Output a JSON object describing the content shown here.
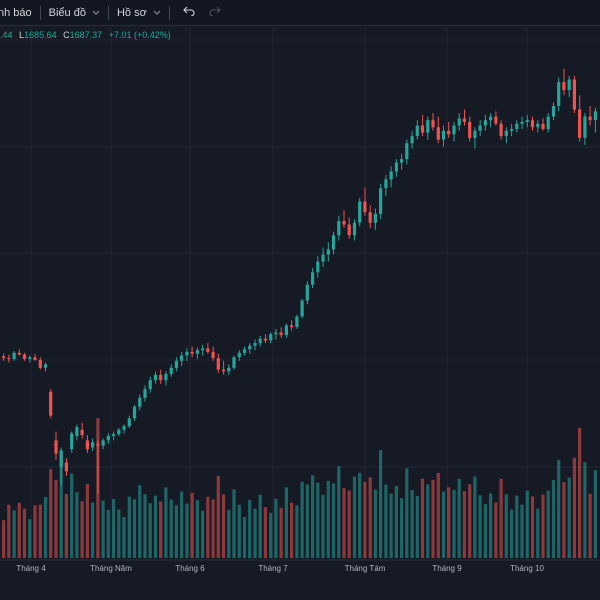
{
  "toolbar": {
    "alerts_label": "nh báo",
    "chart_label": "Biểu đồ",
    "profile_label": "Hồ sơ",
    "undo_icon": "undo-icon",
    "redo_icon": "redo-icon"
  },
  "legend": {
    "open_value": ".44",
    "low_key": "L",
    "low_value": "1685.64",
    "close_key": "C",
    "close_value": "1687.37",
    "change": "+7.01 (+0.42%)"
  },
  "colors": {
    "up": "#26a69a",
    "down": "#ef5350",
    "background": "#161a25",
    "grid": "#222632"
  },
  "chart_data": {
    "type": "candlestick",
    "x_tick_labels": [
      "Tháng 4",
      "Tháng Năm",
      "Tháng 6",
      "Tháng 7",
      "Tháng Tám",
      "Tháng 9",
      "Tháng 10"
    ],
    "price_range": [
      1260,
      1780
    ],
    "candles": [
      [
        1445,
        1448,
        1440,
        1443
      ],
      [
        1443,
        1447,
        1438,
        1442
      ],
      [
        1442,
        1451,
        1440,
        1449
      ],
      [
        1449,
        1453,
        1446,
        1447
      ],
      [
        1447,
        1449,
        1440,
        1442
      ],
      [
        1442,
        1446,
        1438,
        1444
      ],
      [
        1444,
        1448,
        1440,
        1441
      ],
      [
        1441,
        1444,
        1430,
        1432
      ],
      [
        1432,
        1438,
        1428,
        1436
      ],
      [
        1405,
        1408,
        1375,
        1378
      ],
      [
        1350,
        1360,
        1328,
        1335
      ],
      [
        1320,
        1342,
        1300,
        1338
      ],
      [
        1325,
        1330,
        1310,
        1315
      ],
      [
        1340,
        1360,
        1336,
        1358
      ],
      [
        1355,
        1368,
        1350,
        1365
      ],
      [
        1362,
        1370,
        1352,
        1356
      ],
      [
        1350,
        1356,
        1336,
        1340
      ],
      [
        1342,
        1352,
        1338,
        1348
      ],
      [
        1346,
        1350,
        1290,
        1344
      ],
      [
        1344,
        1352,
        1340,
        1350
      ],
      [
        1350,
        1358,
        1346,
        1355
      ],
      [
        1355,
        1360,
        1350,
        1357
      ],
      [
        1357,
        1364,
        1355,
        1362
      ],
      [
        1362,
        1368,
        1358,
        1366
      ],
      [
        1366,
        1378,
        1364,
        1375
      ],
      [
        1375,
        1390,
        1372,
        1388
      ],
      [
        1388,
        1402,
        1384,
        1398
      ],
      [
        1398,
        1412,
        1394,
        1408
      ],
      [
        1408,
        1422,
        1404,
        1418
      ],
      [
        1418,
        1428,
        1414,
        1424
      ],
      [
        1424,
        1430,
        1414,
        1418
      ],
      [
        1418,
        1428,
        1412,
        1425
      ],
      [
        1425,
        1436,
        1422,
        1432
      ],
      [
        1432,
        1444,
        1428,
        1440
      ],
      [
        1440,
        1450,
        1434,
        1446
      ],
      [
        1446,
        1454,
        1440,
        1450
      ],
      [
        1450,
        1456,
        1444,
        1448
      ],
      [
        1448,
        1455,
        1442,
        1452
      ],
      [
        1452,
        1458,
        1446,
        1454
      ],
      [
        1454,
        1460,
        1448,
        1450
      ],
      [
        1450,
        1456,
        1440,
        1443
      ],
      [
        1443,
        1448,
        1426,
        1430
      ],
      [
        1430,
        1440,
        1424,
        1428
      ],
      [
        1428,
        1436,
        1424,
        1432
      ],
      [
        1432,
        1446,
        1430,
        1444
      ],
      [
        1444,
        1452,
        1440,
        1449
      ],
      [
        1449,
        1456,
        1446,
        1453
      ],
      [
        1453,
        1460,
        1448,
        1457
      ],
      [
        1457,
        1464,
        1452,
        1460
      ],
      [
        1460,
        1468,
        1456,
        1465
      ],
      [
        1465,
        1470,
        1460,
        1463
      ],
      [
        1463,
        1472,
        1460,
        1470
      ],
      [
        1470,
        1476,
        1464,
        1472
      ],
      [
        1472,
        1478,
        1466,
        1469
      ],
      [
        1469,
        1482,
        1466,
        1480
      ],
      [
        1480,
        1486,
        1474,
        1478
      ],
      [
        1478,
        1492,
        1476,
        1490
      ],
      [
        1490,
        1510,
        1488,
        1508
      ],
      [
        1508,
        1530,
        1504,
        1526
      ],
      [
        1526,
        1545,
        1522,
        1540
      ],
      [
        1540,
        1558,
        1534,
        1552
      ],
      [
        1552,
        1568,
        1546,
        1560
      ],
      [
        1560,
        1574,
        1552,
        1566
      ],
      [
        1566,
        1586,
        1560,
        1582
      ],
      [
        1582,
        1604,
        1576,
        1598
      ],
      [
        1598,
        1610,
        1590,
        1594
      ],
      [
        1594,
        1602,
        1578,
        1582
      ],
      [
        1582,
        1600,
        1576,
        1596
      ],
      [
        1596,
        1624,
        1592,
        1620
      ],
      [
        1620,
        1636,
        1604,
        1608
      ],
      [
        1608,
        1616,
        1590,
        1596
      ],
      [
        1596,
        1612,
        1588,
        1606
      ],
      [
        1606,
        1640,
        1600,
        1635
      ],
      [
        1635,
        1650,
        1626,
        1645
      ],
      [
        1645,
        1660,
        1636,
        1654
      ],
      [
        1654,
        1668,
        1648,
        1664
      ],
      [
        1664,
        1674,
        1656,
        1668
      ],
      [
        1668,
        1690,
        1662,
        1686
      ],
      [
        1686,
        1700,
        1680,
        1694
      ],
      [
        1694,
        1712,
        1690,
        1706
      ],
      [
        1706,
        1718,
        1694,
        1698
      ],
      [
        1698,
        1716,
        1690,
        1712
      ],
      [
        1712,
        1720,
        1700,
        1704
      ],
      [
        1704,
        1716,
        1686,
        1690
      ],
      [
        1690,
        1706,
        1682,
        1700
      ],
      [
        1700,
        1710,
        1692,
        1696
      ],
      [
        1696,
        1710,
        1688,
        1706
      ],
      [
        1706,
        1720,
        1700,
        1714
      ],
      [
        1714,
        1724,
        1706,
        1710
      ],
      [
        1710,
        1716,
        1688,
        1692
      ],
      [
        1692,
        1704,
        1680,
        1700
      ],
      [
        1700,
        1712,
        1694,
        1706
      ],
      [
        1706,
        1718,
        1700,
        1712
      ],
      [
        1712,
        1720,
        1704,
        1716
      ],
      [
        1716,
        1722,
        1706,
        1708
      ],
      [
        1708,
        1712,
        1690,
        1694
      ],
      [
        1694,
        1704,
        1686,
        1700
      ],
      [
        1700,
        1708,
        1694,
        1702
      ],
      [
        1702,
        1712,
        1698,
        1708
      ],
      [
        1708,
        1716,
        1702,
        1710
      ],
      [
        1710,
        1718,
        1704,
        1712
      ],
      [
        1712,
        1716,
        1700,
        1704
      ],
      [
        1704,
        1712,
        1698,
        1708
      ],
      [
        1708,
        1714,
        1700,
        1702
      ],
      [
        1702,
        1720,
        1698,
        1716
      ],
      [
        1716,
        1732,
        1712,
        1728
      ],
      [
        1728,
        1760,
        1722,
        1755
      ],
      [
        1755,
        1770,
        1740,
        1746
      ],
      [
        1746,
        1762,
        1738,
        1758
      ],
      [
        1758,
        1762,
        1720,
        1724
      ],
      [
        1724,
        1740,
        1688,
        1692
      ],
      [
        1692,
        1720,
        1684,
        1716
      ],
      [
        1716,
        1728,
        1706,
        1712
      ],
      [
        1712,
        1726,
        1698,
        1722
      ]
    ],
    "volume_range": [
      0,
      140
    ]
  }
}
